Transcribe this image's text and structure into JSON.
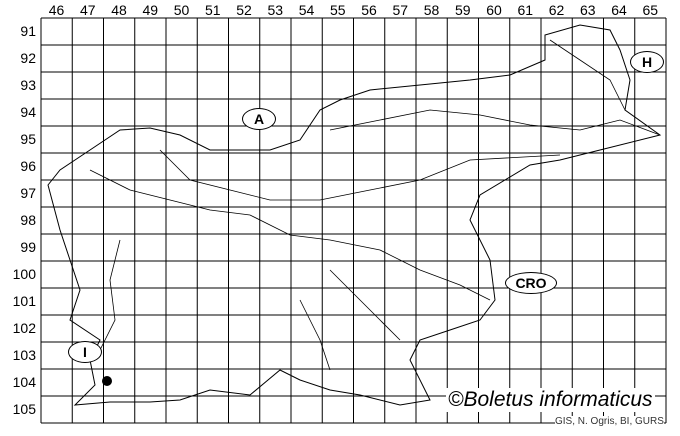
{
  "columns": [
    "46",
    "47",
    "48",
    "49",
    "50",
    "51",
    "52",
    "53",
    "54",
    "55",
    "56",
    "57",
    "58",
    "59",
    "60",
    "61",
    "62",
    "63",
    "64",
    "65"
  ],
  "rows": [
    "91",
    "92",
    "93",
    "94",
    "95",
    "96",
    "97",
    "98",
    "99",
    "100",
    "101",
    "102",
    "103",
    "104",
    "105"
  ],
  "country_labels": [
    {
      "text": "A",
      "country": "Austria"
    },
    {
      "text": "H",
      "country": "Hungary"
    },
    {
      "text": "CRO",
      "country": "Croatia"
    },
    {
      "text": "I",
      "country": "Italy"
    }
  ],
  "records": [
    {
      "column": "47",
      "row": "104",
      "symbol": "filled-circle"
    }
  ],
  "copyright": "©Boletus informaticus",
  "credit": "GIS, N. Ogris, BI, GURS",
  "colors": {
    "lines": "#000000",
    "background": "#ffffff",
    "credit_text": "#333333"
  }
}
